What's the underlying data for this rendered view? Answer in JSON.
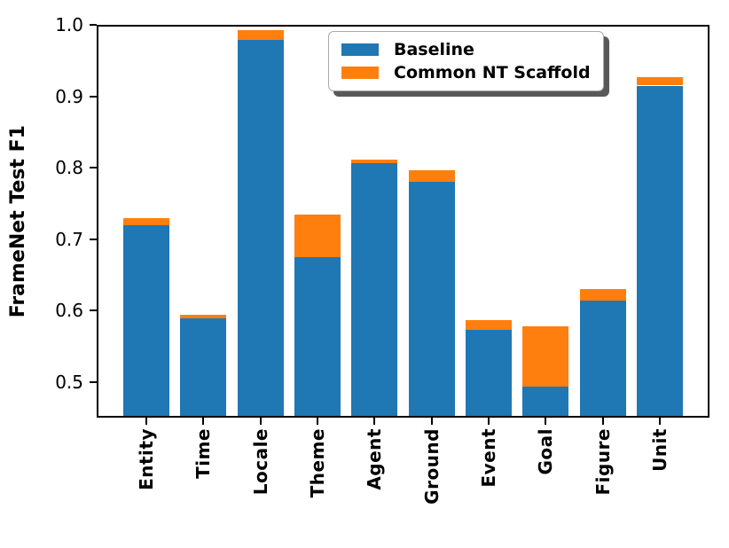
{
  "chart_data": {
    "type": "bar",
    "stacked": true,
    "title": "",
    "xlabel": "",
    "ylabel": "FrameNet Test F1",
    "ylim": [
      0.45,
      1.0
    ],
    "yticks": [
      "0.5",
      "0.6",
      "0.7",
      "0.8",
      "0.9",
      "1.0"
    ],
    "grid": false,
    "legend_position": "upper center",
    "categories": [
      "Entity",
      "Time",
      "Locale",
      "Theme",
      "Agent",
      "Ground",
      "Event",
      "Goal",
      "Figure",
      "Unit"
    ],
    "series": [
      {
        "name": "Baseline",
        "color": "#1f77b4",
        "values": [
          0.72,
          0.589,
          0.979,
          0.675,
          0.806,
          0.78,
          0.573,
          0.494,
          0.614,
          0.915
        ]
      },
      {
        "name": "Common NT Scaffold",
        "color": "#ff7f0e",
        "values": [
          0.01,
          0.005,
          0.013,
          0.059,
          0.005,
          0.016,
          0.014,
          0.084,
          0.016,
          0.012
        ]
      }
    ],
    "stacked_totals": [
      0.73,
      0.594,
      0.992,
      0.734,
      0.811,
      0.796,
      0.587,
      0.578,
      0.63,
      0.927
    ]
  },
  "colors": {
    "baseline": "#1f77b4",
    "scaffold": "#ff7f0e",
    "axis": "#000000",
    "background": "#ffffff"
  }
}
